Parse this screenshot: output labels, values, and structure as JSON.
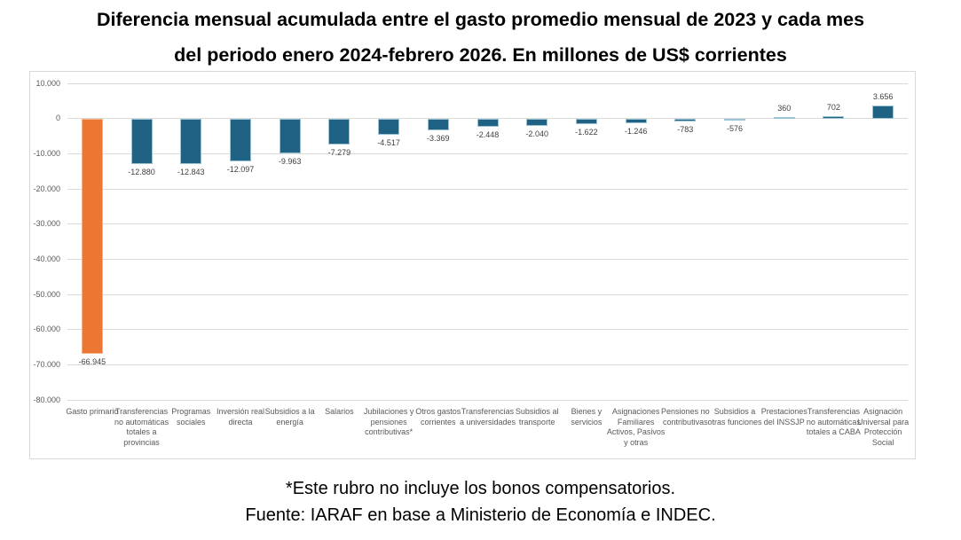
{
  "title_line1": "Diferencia mensual acumulada entre el gasto promedio mensual de 2023 y cada mes",
  "title_line2": "del periodo enero 2024-febrero 2026. En millones de US$ corrientes",
  "footnote": "*Este rubro no incluye los bonos compensatorios.",
  "source": "Fuente: IARAF en base a Ministerio de Economía e INDEC.",
  "colors": {
    "bar_default": "#1f6284",
    "bar_default_border": "#9cc3d3",
    "bar_highlight": "#ec7634",
    "bar_highlight_border": "#f4b183",
    "gridline": "#d9d9d9",
    "axis_text": "#595959",
    "value_text": "#3f3f3f"
  },
  "chart_data": {
    "type": "bar",
    "title": "Diferencia mensual acumulada entre el gasto promedio mensual de 2023 y cada mes del periodo enero 2024-febrero 2026. En millones de US$ corrientes",
    "xlabel": "",
    "ylabel": "",
    "ylim": [
      -80000,
      10000
    ],
    "grid": true,
    "legend": false,
    "highlight_index": 0,
    "categories": [
      "Gasto primario",
      "Transferencias no automáticas totales a provincias",
      "Programas sociales",
      "Inversión real directa",
      "Subsidios a la energía",
      "Salarios",
      "Jubilaciones y pensiones contributivas*",
      "Otros gastos corrientes",
      "Transferencias a universidades",
      "Subsidios al transporte",
      "Bienes y servicios",
      "Asignaciones Familiares Activos, Pasivos y otras",
      "Pensiones no contributivas",
      "Subsidios a otras funciones",
      "Prestaciones del INSSJP",
      "Transferencias no automáticas totales a CABA",
      "Asignación Universal para Protección Social"
    ],
    "values": [
      -66945,
      -12880,
      -12843,
      -12097,
      -9963,
      -7279,
      -4517,
      -3369,
      -2448,
      -2040,
      -1622,
      -1246,
      -783,
      -576,
      360,
      702,
      3656
    ],
    "value_labels": [
      "-66.945",
      "-12.880",
      "-12.843",
      "-12.097",
      "-9.963",
      "-7.279",
      "-4.517",
      "-3.369",
      "-2.448",
      "-2.040",
      "-1.622",
      "-1.246",
      "-783",
      "-576",
      "360",
      "702",
      "3.656"
    ],
    "yticks": [
      10000,
      0,
      -10000,
      -20000,
      -30000,
      -40000,
      -50000,
      -60000,
      -70000,
      -80000
    ],
    "ytick_labels": [
      "10.000",
      "0",
      "-10.000",
      "-20.000",
      "-30.000",
      "-40.000",
      "-50.000",
      "-60.000",
      "-70.000",
      "-80.000"
    ]
  }
}
